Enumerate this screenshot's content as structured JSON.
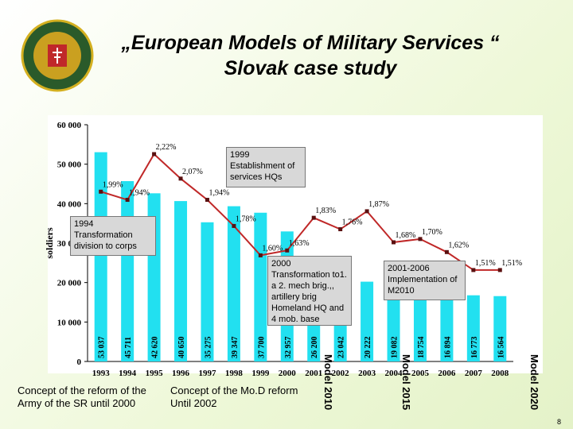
{
  "slide": {
    "title": [
      "„European Models of Military Services “",
      "Slovak case study"
    ],
    "notes": [
      "Concept of the reform of the Army of the SR until 2000",
      "Concept of the Mo.D reform Until 2002"
    ],
    "models": [
      "Model 2010",
      "Model 2015",
      "Model 2020"
    ],
    "page_number": "8"
  },
  "chart_data": {
    "type": "bar",
    "y_label": "soldiers",
    "categories": [
      "1993",
      "1994",
      "1995",
      "1996",
      "1997",
      "1998",
      "1999",
      "2000",
      "2001",
      "2002",
      "2003",
      "2004",
      "2005",
      "2006",
      "2007",
      "2008"
    ],
    "series": [
      {
        "type": "bar",
        "color": "#22e0f0",
        "values": [
          53037,
          45711,
          42620,
          40650,
          35275,
          39347,
          37700,
          32957,
          26200,
          23042,
          20222,
          19082,
          18754,
          16894,
          16773,
          16564
        ],
        "value_labels": [
          "53 037",
          "45 711",
          "42 620",
          "40 650",
          "35 275",
          "39 347",
          "37 700",
          "32 957",
          "26 200",
          "23 042",
          "20 222",
          "19 082",
          "18 754",
          "16 894",
          "16 773",
          "16 564"
        ]
      },
      {
        "type": "line",
        "axis": "y2",
        "color": "#c02828",
        "values": [
          1.99,
          1.94,
          2.22,
          2.07,
          1.94,
          1.78,
          1.6,
          1.63,
          1.83,
          1.76,
          1.87,
          1.68,
          1.7,
          1.62,
          1.51,
          1.51
        ],
        "value_labels": [
          "1,99%",
          "1,94%",
          "2,22%",
          "2,07%",
          "1,94%",
          "1,78%",
          "1,60%",
          "1,63%",
          "1,83%",
          "1,76%",
          "1,87%",
          "1,68%",
          "1,70%",
          "1,62%",
          "1,51%",
          "1,51%"
        ]
      }
    ],
    "ylim": [
      0,
      60000
    ],
    "yticks": [
      0,
      {
        "value": 10000,
        "label": "10 000"
      },
      {
        "value": 20000,
        "label": "20 000"
      },
      {
        "value": 30000,
        "label": "30 000"
      },
      {
        "value": 40000,
        "label": "40 000"
      },
      {
        "value": 50000,
        "label": "50 000"
      },
      {
        "value": 60000,
        "label": "60 000"
      }
    ],
    "y2lim": [
      0.95,
      2.4
    ],
    "annotations": [
      "1999 Establishment of services HQs",
      "1994 Transformation division to corps",
      "2000 Transformation to1. a 2. mech brig.,, artillery brig Homeland HQ and 4 mob. base",
      "2001-2006 Implementation of M2010"
    ]
  }
}
